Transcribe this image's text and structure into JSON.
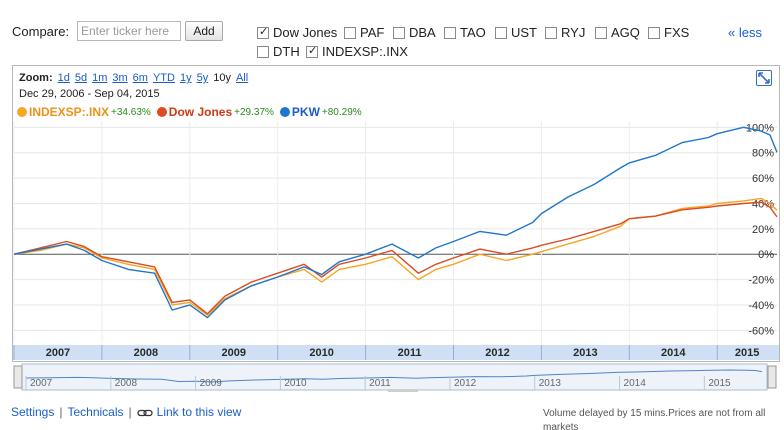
{
  "compare": {
    "label": "Compare:",
    "input_placeholder": "Enter ticker here",
    "add_label": "Add",
    "tickers": [
      {
        "label": "Dow Jones",
        "checked": true
      },
      {
        "label": "PAF",
        "checked": false
      },
      {
        "label": "DBA",
        "checked": false
      },
      {
        "label": "TAO",
        "checked": false
      },
      {
        "label": "UST",
        "checked": false
      },
      {
        "label": "RYJ",
        "checked": false
      },
      {
        "label": "AGQ",
        "checked": false
      },
      {
        "label": "FXS",
        "checked": false
      },
      {
        "label": "DTH",
        "checked": false
      },
      {
        "label": "INDEXSP:.INX",
        "checked": true
      }
    ],
    "less_label": "« less"
  },
  "zoom": {
    "label": "Zoom:",
    "options": [
      "1d",
      "5d",
      "1m",
      "3m",
      "6m",
      "YTD",
      "1y",
      "5y",
      "10y",
      "All"
    ],
    "selected": "10y"
  },
  "date_range": "Dec 29, 2006  -  Sep 04, 2015",
  "legend": [
    {
      "name": "INDEXSP:.INX",
      "change": "+34.63%",
      "color": "#f5a623"
    },
    {
      "name": "Dow Jones",
      "change": "+29.37%",
      "color": "#dc4b22"
    },
    {
      "name": "PKW",
      "change": "+80.29%",
      "color": "#1f77c9"
    }
  ],
  "icons": {
    "expand": "expand-icon",
    "link": "chain-link-icon"
  },
  "chart_data": {
    "type": "line",
    "y_unit": "%",
    "ylim": [
      -70,
      105
    ],
    "y_ticks": [
      "100%",
      "80%",
      "60%",
      "40%",
      "20%",
      "0%",
      "-20%",
      "-40%",
      "-60%"
    ],
    "x_ticks": [
      "2007",
      "2008",
      "2009",
      "2010",
      "2011",
      "2012",
      "2013",
      "2014",
      "2015"
    ],
    "x_range": [
      2007.0,
      2015.68
    ],
    "grid": true,
    "series": [
      {
        "name": "INDEXSP:.INX",
        "color": "#f5a623",
        "x": [
          2007.0,
          2007.3,
          2007.6,
          2007.8,
          2008.0,
          2008.3,
          2008.6,
          2008.8,
          2009.0,
          2009.2,
          2009.4,
          2009.7,
          2010.0,
          2010.3,
          2010.5,
          2010.7,
          2011.0,
          2011.3,
          2011.6,
          2011.8,
          2012.0,
          2012.3,
          2012.6,
          2012.9,
          2013.0,
          2013.3,
          2013.6,
          2013.9,
          2014.0,
          2014.3,
          2014.6,
          2014.9,
          2015.0,
          2015.3,
          2015.5,
          2015.6,
          2015.68
        ],
        "values": [
          0,
          3,
          8,
          5,
          -3,
          -8,
          -12,
          -40,
          -38,
          -48,
          -35,
          -25,
          -18,
          -12,
          -22,
          -12,
          -8,
          -2,
          -20,
          -12,
          -8,
          0,
          -5,
          0,
          2,
          8,
          14,
          22,
          28,
          30,
          36,
          38,
          40,
          42,
          44,
          40,
          34.63
        ]
      },
      {
        "name": "Dow Jones",
        "color": "#dc4b22",
        "x": [
          2007.0,
          2007.3,
          2007.6,
          2007.8,
          2008.0,
          2008.3,
          2008.6,
          2008.8,
          2009.0,
          2009.2,
          2009.4,
          2009.7,
          2010.0,
          2010.3,
          2010.5,
          2010.7,
          2011.0,
          2011.3,
          2011.6,
          2011.8,
          2012.0,
          2012.3,
          2012.6,
          2012.9,
          2013.0,
          2013.3,
          2013.6,
          2013.9,
          2014.0,
          2014.3,
          2014.6,
          2014.9,
          2015.0,
          2015.3,
          2015.5,
          2015.6,
          2015.68
        ],
        "values": [
          0,
          5,
          10,
          6,
          -2,
          -6,
          -10,
          -38,
          -36,
          -47,
          -33,
          -22,
          -15,
          -8,
          -18,
          -8,
          -3,
          3,
          -15,
          -8,
          -3,
          4,
          0,
          5,
          7,
          12,
          18,
          24,
          28,
          30,
          35,
          37,
          38,
          40,
          41,
          37,
          29.37
        ]
      },
      {
        "name": "PKW",
        "color": "#1f77c9",
        "x": [
          2007.0,
          2007.3,
          2007.6,
          2007.8,
          2008.0,
          2008.3,
          2008.6,
          2008.8,
          2009.0,
          2009.2,
          2009.4,
          2009.7,
          2010.0,
          2010.3,
          2010.5,
          2010.7,
          2011.0,
          2011.3,
          2011.6,
          2011.8,
          2012.0,
          2012.3,
          2012.6,
          2012.9,
          2013.0,
          2013.3,
          2013.6,
          2013.9,
          2014.0,
          2014.3,
          2014.6,
          2014.9,
          2015.0,
          2015.3,
          2015.5,
          2015.6,
          2015.68
        ],
        "values": [
          0,
          4,
          8,
          3,
          -5,
          -12,
          -15,
          -44,
          -40,
          -50,
          -36,
          -25,
          -18,
          -10,
          -16,
          -6,
          0,
          8,
          -3,
          5,
          10,
          18,
          15,
          25,
          32,
          45,
          55,
          68,
          72,
          78,
          88,
          92,
          95,
          100,
          97,
          94,
          80.29
        ]
      }
    ]
  },
  "navigator": {
    "year_labels": [
      "2007",
      "2008",
      "2009",
      "2010",
      "2011",
      "2012",
      "2013",
      "2014",
      "2015"
    ]
  },
  "footer": {
    "settings": "Settings",
    "technicals": "Technicals",
    "link_view": "Link to this view",
    "notice": "Volume delayed by 15 mins.Prices are not from all markets"
  }
}
